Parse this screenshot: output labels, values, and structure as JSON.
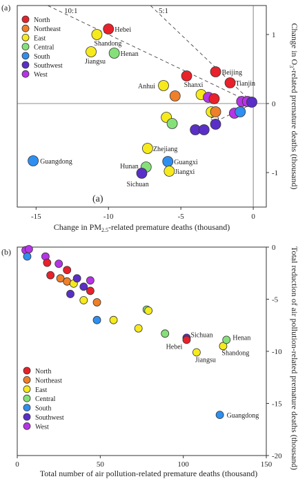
{
  "colors": {
    "North": "#e8212a",
    "Northeast": "#f07f2a",
    "East": "#f6ea1c",
    "Central": "#86e07a",
    "South": "#2f8ff0",
    "Southwest": "#5a2fc8",
    "West": "#b634e8"
  },
  "legend_regions": [
    "North",
    "Northeast",
    "East",
    "Central",
    "South",
    "Southwest",
    "West"
  ],
  "chart_data": [
    {
      "type": "scatter",
      "panel_label": "(a)",
      "inner_label": "(a)",
      "xlabel_main": "Change in PM",
      "xlabel_sub": "2.5",
      "xlabel_tail": "-related premature deaths (thousand)",
      "ylabel_main": "Change in O",
      "ylabel_sub": "3",
      "ylabel_tail": "-related premature deaths (thousand)",
      "xlim": [
        -16.3,
        0.9
      ],
      "ylim": [
        -1.5,
        1.42
      ],
      "xticks": [
        -15,
        -10,
        -5,
        0
      ],
      "xtick_labels": [
        "-15",
        "-10",
        "-5",
        "0"
      ],
      "yticks": [
        -1,
        0,
        1
      ],
      "ytick_labels": [
        "-1",
        "0",
        "1"
      ],
      "legend_position": "top-left",
      "ref_lines": [
        {
          "label": "10:1",
          "ratio": 0.1
        },
        {
          "label": "5:1",
          "ratio": 0.2
        },
        {
          "label": "5:1",
          "ratio": null
        }
      ],
      "points": [
        {
          "x": -10.0,
          "y": 1.08,
          "region": "North",
          "label": "Hebei"
        },
        {
          "x": -10.8,
          "y": 1.0,
          "region": "East",
          "label": "Shandong"
        },
        {
          "x": -11.2,
          "y": 0.75,
          "region": "East",
          "label": "Jiangsu"
        },
        {
          "x": -9.6,
          "y": 0.73,
          "region": "Central",
          "label": "Henan"
        },
        {
          "x": -4.6,
          "y": 0.4,
          "region": "North",
          "label": "Shanxi"
        },
        {
          "x": -2.6,
          "y": 0.46,
          "region": "North",
          "label": "Beijing"
        },
        {
          "x": -1.6,
          "y": 0.3,
          "region": "North",
          "label": "Tianjin"
        },
        {
          "x": -6.2,
          "y": 0.26,
          "region": "East",
          "label": "Anhui"
        },
        {
          "x": -5.4,
          "y": 0.11,
          "region": "Northeast",
          "label": ""
        },
        {
          "x": -3.6,
          "y": 0.13,
          "region": "East",
          "label": ""
        },
        {
          "x": -3.1,
          "y": 0.09,
          "region": "West",
          "label": ""
        },
        {
          "x": -2.7,
          "y": 0.07,
          "region": "North",
          "label": ""
        },
        {
          "x": -0.8,
          "y": 0.03,
          "region": "West",
          "label": ""
        },
        {
          "x": -0.4,
          "y": 0.03,
          "region": "West",
          "label": ""
        },
        {
          "x": -0.1,
          "y": 0.02,
          "region": "Southwest",
          "label": ""
        },
        {
          "x": -2.9,
          "y": -0.12,
          "region": "East",
          "label": ""
        },
        {
          "x": -2.6,
          "y": -0.12,
          "region": "Northeast",
          "label": ""
        },
        {
          "x": -1.3,
          "y": -0.14,
          "region": "West",
          "label": ""
        },
        {
          "x": -0.9,
          "y": -0.12,
          "region": "South",
          "label": ""
        },
        {
          "x": -6.0,
          "y": -0.2,
          "region": "East",
          "label": ""
        },
        {
          "x": -5.6,
          "y": -0.29,
          "region": "Central",
          "label": ""
        },
        {
          "x": -2.6,
          "y": -0.3,
          "region": "Southwest",
          "label": ""
        },
        {
          "x": -4.0,
          "y": -0.38,
          "region": "Southwest",
          "label": ""
        },
        {
          "x": -3.4,
          "y": -0.38,
          "region": "Southwest",
          "label": ""
        },
        {
          "x": -7.3,
          "y": -0.65,
          "region": "East",
          "label": "Zhejiang"
        },
        {
          "x": -15.2,
          "y": -0.83,
          "region": "South",
          "label": "Guangdong"
        },
        {
          "x": -5.9,
          "y": -0.84,
          "region": "South",
          "label": "Guangxi"
        },
        {
          "x": -7.4,
          "y": -0.92,
          "region": "Central",
          "label": "Hunan"
        },
        {
          "x": -5.8,
          "y": -0.98,
          "region": "East",
          "label": "Jiangxi"
        },
        {
          "x": -7.7,
          "y": -1.01,
          "region": "Southwest",
          "label": "Sichuan"
        }
      ]
    },
    {
      "type": "scatter",
      "panel_label": "(b)",
      "xlabel": "Total number of air pollution-related premature deaths (thousand)",
      "ylabel": "Total reduction of air pollution-related premature deaths (thousand)",
      "xlim": [
        0,
        150
      ],
      "ylim": [
        -20,
        0
      ],
      "xticks": [
        0,
        50,
        100,
        150
      ],
      "xtick_labels": [
        "0",
        "50",
        "100",
        "150"
      ],
      "yticks": [
        0,
        -5,
        -10,
        -15,
        -20
      ],
      "ytick_labels": [
        "0",
        "-5",
        "-10",
        "-15",
        "-20"
      ],
      "legend_position": "bottom-left",
      "points": [
        {
          "x": 5,
          "y": -0.3,
          "region": "West",
          "label": ""
        },
        {
          "x": 7,
          "y": -0.2,
          "region": "West",
          "label": ""
        },
        {
          "x": 6,
          "y": -0.9,
          "region": "South",
          "label": ""
        },
        {
          "x": 17,
          "y": -0.9,
          "region": "West",
          "label": ""
        },
        {
          "x": 18,
          "y": -1.5,
          "region": "North",
          "label": ""
        },
        {
          "x": 25,
          "y": -1.6,
          "region": "West",
          "label": ""
        },
        {
          "x": 30,
          "y": -2.2,
          "region": "North",
          "label": ""
        },
        {
          "x": 20,
          "y": -2.7,
          "region": "North",
          "label": ""
        },
        {
          "x": 26,
          "y": -3.0,
          "region": "Northeast",
          "label": ""
        },
        {
          "x": 30,
          "y": -3.3,
          "region": "Northeast",
          "label": ""
        },
        {
          "x": 34,
          "y": -3.5,
          "region": "East",
          "label": ""
        },
        {
          "x": 36,
          "y": -3.0,
          "region": "Southwest",
          "label": ""
        },
        {
          "x": 40,
          "y": -3.8,
          "region": "Southwest",
          "label": ""
        },
        {
          "x": 44,
          "y": -3.2,
          "region": "West",
          "label": ""
        },
        {
          "x": 44,
          "y": -4.2,
          "region": "North",
          "label": ""
        },
        {
          "x": 32,
          "y": -4.5,
          "region": "Southwest",
          "label": ""
        },
        {
          "x": 40,
          "y": -5.1,
          "region": "East",
          "label": ""
        },
        {
          "x": 48,
          "y": -5.3,
          "region": "Northeast",
          "label": ""
        },
        {
          "x": 48,
          "y": -7.0,
          "region": "South",
          "label": ""
        },
        {
          "x": 58,
          "y": -7.0,
          "region": "East",
          "label": ""
        },
        {
          "x": 73,
          "y": -7.8,
          "region": "East",
          "label": ""
        },
        {
          "x": 78,
          "y": -6.0,
          "region": "Central",
          "label": ""
        },
        {
          "x": 79,
          "y": -6.1,
          "region": "East",
          "label": ""
        },
        {
          "x": 89,
          "y": -8.3,
          "region": "Central",
          "label": ""
        },
        {
          "x": 102,
          "y": -8.7,
          "region": "Southwest",
          "label": "Sichuan"
        },
        {
          "x": 102,
          "y": -8.9,
          "region": "North",
          "label": "Hebei"
        },
        {
          "x": 108,
          "y": -10.1,
          "region": "East",
          "label": "Jiangsu"
        },
        {
          "x": 124,
          "y": -9.5,
          "region": "East",
          "label": "Shandong"
        },
        {
          "x": 126,
          "y": -8.9,
          "region": "Central",
          "label": "Henan"
        },
        {
          "x": 122,
          "y": -16.1,
          "region": "South",
          "label": "Guangdong"
        }
      ]
    }
  ]
}
